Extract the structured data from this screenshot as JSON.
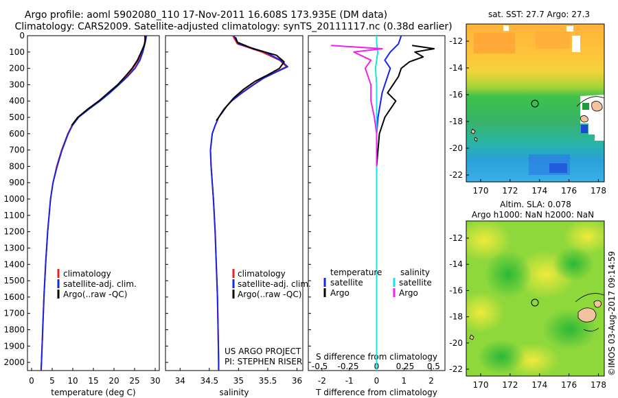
{
  "header": {
    "title_line1": "Argo profile: aoml 5902080_110 17-Nov-2011 16.608S 173.935E (DM data)",
    "title_line2": "Climatology: CARS2009. Satellite-adjusted climatology: synTS_20111117.nc (0.38d earlier)"
  },
  "colors": {
    "climatology": "#e8221c",
    "satellite": "#1524e8",
    "argo": "#000000",
    "sat_salinity": "#12e4ea",
    "argo_salinity": "#ee22ee"
  },
  "legend_profile": {
    "climatology": "climatology",
    "satellite": "satellite-adj. clim.",
    "argo": "Argo(..raw -QC)"
  },
  "legend_diff": {
    "temperature_header": "temperature",
    "salinity_header": "salinity",
    "satellite": "satellite",
    "argo": "Argo",
    "sat_salinity": "satellite",
    "argo_salinity": "Argo"
  },
  "project_note": {
    "line1": "US ARGO PROJECT",
    "line2": "PI: STEPHEN RISER"
  },
  "map_sst": {
    "title": "sat. SST: 27.7 Argo: 27.3"
  },
  "map_sla": {
    "title_line1": "Altim. SLA: 0.078",
    "title_line2": "Argo h1000: NaN h2000: NaN"
  },
  "credit": "©IMOS 03-Aug-2017 09:14:59",
  "chart_data": [
    {
      "type": "line",
      "xlabel": "temperature (deg C)",
      "ylim": [
        2050,
        0
      ],
      "xlim": [
        -1,
        31
      ],
      "xticks": [
        "0",
        "5",
        "10",
        "15",
        "20",
        "25",
        "30"
      ],
      "yticks": [
        "0",
        "100",
        "200",
        "300",
        "400",
        "500",
        "600",
        "700",
        "800",
        "900",
        "1000",
        "1100",
        "1200",
        "1300",
        "1400",
        "1500",
        "1600",
        "1700",
        "1800",
        "1900",
        "2000"
      ],
      "series": [
        {
          "name": "climatology",
          "depth": [
            0,
            50,
            100,
            150,
            200,
            250,
            300,
            350,
            400,
            450,
            500,
            550,
            600,
            700,
            800,
            900,
            1000,
            1200,
            1400,
            1600,
            1800,
            2000,
            2050
          ],
          "values": [
            27.6,
            27.4,
            26.8,
            25.9,
            24.6,
            22.9,
            21.1,
            18.8,
            16.4,
            13.8,
            11.3,
            9.8,
            8.8,
            7.3,
            6.1,
            5.2,
            4.6,
            3.9,
            3.4,
            3.0,
            2.7,
            2.4,
            2.3
          ]
        },
        {
          "name": "satellite-adj. clim.",
          "depth": [
            0,
            50,
            100,
            150,
            200,
            250,
            300,
            350,
            400,
            450,
            500,
            550,
            600,
            700,
            800,
            900,
            1000,
            1200,
            1400,
            1600,
            1800,
            2000,
            2050
          ],
          "values": [
            27.9,
            27.5,
            27.0,
            26.3,
            25.1,
            23.3,
            21.2,
            19.0,
            16.6,
            13.9,
            11.4,
            9.9,
            8.9,
            7.4,
            6.2,
            5.2,
            4.6,
            3.9,
            3.4,
            3.0,
            2.7,
            2.4,
            2.3
          ]
        },
        {
          "name": "Argo(..raw -QC)",
          "depth": [
            0,
            30,
            60,
            100,
            150,
            200,
            250,
            300,
            350,
            400,
            450,
            500,
            550
          ],
          "values": [
            27.5,
            27.6,
            27.3,
            26.6,
            25.7,
            24.4,
            22.7,
            20.9,
            18.6,
            16.3,
            13.6,
            11.2,
            9.7
          ]
        }
      ]
    },
    {
      "type": "line",
      "xlabel": "salinity",
      "ylim": [
        2050,
        0
      ],
      "xlim": [
        33.75,
        36.1
      ],
      "xticks": [
        "34",
        "34.5",
        "35",
        "35.5",
        "36"
      ],
      "series": [
        {
          "name": "climatology",
          "depth": [
            0,
            50,
            100,
            150,
            190,
            220,
            260,
            300,
            350,
            400,
            450,
            500,
            550,
            600,
            700,
            800,
            900,
            1000,
            1200,
            1400,
            1600,
            1800,
            2000,
            2050
          ],
          "values": [
            34.9,
            34.98,
            35.4,
            35.7,
            35.82,
            35.65,
            35.42,
            35.25,
            35.05,
            34.88,
            34.75,
            34.66,
            34.6,
            34.55,
            34.52,
            34.53,
            34.55,
            34.57,
            34.6,
            34.62,
            34.64,
            34.65,
            34.66,
            34.66
          ]
        },
        {
          "name": "satellite-adj. clim.",
          "depth": [
            0,
            50,
            100,
            150,
            190,
            220,
            260,
            300,
            350,
            400,
            450,
            500,
            550,
            600,
            700,
            800,
            900,
            1000,
            1200,
            1400,
            1600,
            1800,
            2000,
            2050
          ],
          "values": [
            34.92,
            35.0,
            35.45,
            35.72,
            35.84,
            35.66,
            35.43,
            35.26,
            35.06,
            34.88,
            34.75,
            34.66,
            34.6,
            34.55,
            34.52,
            34.53,
            34.55,
            34.57,
            34.6,
            34.62,
            34.64,
            34.65,
            34.66,
            34.66
          ]
        },
        {
          "name": "Argo(..raw -QC)",
          "depth": [
            10,
            40,
            80,
            120,
            160,
            200,
            240,
            280,
            330,
            380,
            430,
            480,
            520
          ],
          "values": [
            34.95,
            34.98,
            35.25,
            35.65,
            35.78,
            35.7,
            35.5,
            35.28,
            35.08,
            34.92,
            34.8,
            34.7,
            34.62
          ]
        }
      ]
    },
    {
      "type": "line",
      "xlabel": "T difference from climatology",
      "x2label": "S difference from climatology",
      "ylim": [
        2050,
        0
      ],
      "xlim": [
        -2.5,
        2.5
      ],
      "xticks": [
        "-2",
        "-1",
        "0",
        "1",
        "2"
      ],
      "x2ticks": [
        "-0.5",
        "-0.25",
        "0",
        "0.25",
        "0.5"
      ],
      "series": [
        {
          "name": "satellite",
          "depth": [
            0,
            50,
            100,
            150,
            200,
            250,
            300,
            350,
            400,
            450,
            500,
            600,
            800,
            1000,
            1400,
            2050
          ],
          "values": [
            0.9,
            0.8,
            0.5,
            0.3,
            0.5,
            0.4,
            0.3,
            0.2,
            0.15,
            0.1,
            0.05,
            0.0,
            0.0,
            0.0,
            0.0,
            0.0
          ]
        },
        {
          "name": "Argo",
          "depth": [
            60,
            80,
            100,
            130,
            160,
            200,
            250,
            300,
            350,
            400,
            450,
            500,
            550,
            600,
            700,
            800
          ],
          "values": [
            1.3,
            2.1,
            1.4,
            1.7,
            1.2,
            0.9,
            0.8,
            0.6,
            0.4,
            0.7,
            0.5,
            0.3,
            0.2,
            0.1,
            0.05,
            0.0
          ]
        },
        {
          "name": "satellite salinity",
          "depth": [
            0,
            50,
            100,
            150,
            200,
            300,
            400,
            500,
            600,
            800,
            1000,
            1400,
            2050
          ],
          "values": [
            0.0,
            0.0,
            0.01,
            0.0,
            -0.01,
            0.0,
            0.0,
            0.0,
            0.0,
            0.0,
            0.0,
            0.0,
            0.0
          ]
        },
        {
          "name": "Argo salinity",
          "depth": [
            60,
            80,
            100,
            150,
            200,
            300,
            400,
            500,
            600,
            700,
            800
          ],
          "values": [
            -0.4,
            0.05,
            -0.2,
            -0.05,
            -0.1,
            -0.05,
            -0.05,
            -0.02,
            0.0,
            0.0,
            0.0
          ]
        }
      ]
    }
  ],
  "map_axes": {
    "sst": {
      "yticks": [
        "-12",
        "-14",
        "-16",
        "-18",
        "-20",
        "-22"
      ],
      "xticks": [
        "170",
        "172",
        "174",
        "176",
        "178"
      ]
    },
    "sla": {
      "yticks": [
        "-12",
        "-14",
        "-16",
        "-18",
        "-20",
        "-22"
      ],
      "xticks": [
        "170",
        "172",
        "174",
        "176",
        "178"
      ]
    }
  }
}
